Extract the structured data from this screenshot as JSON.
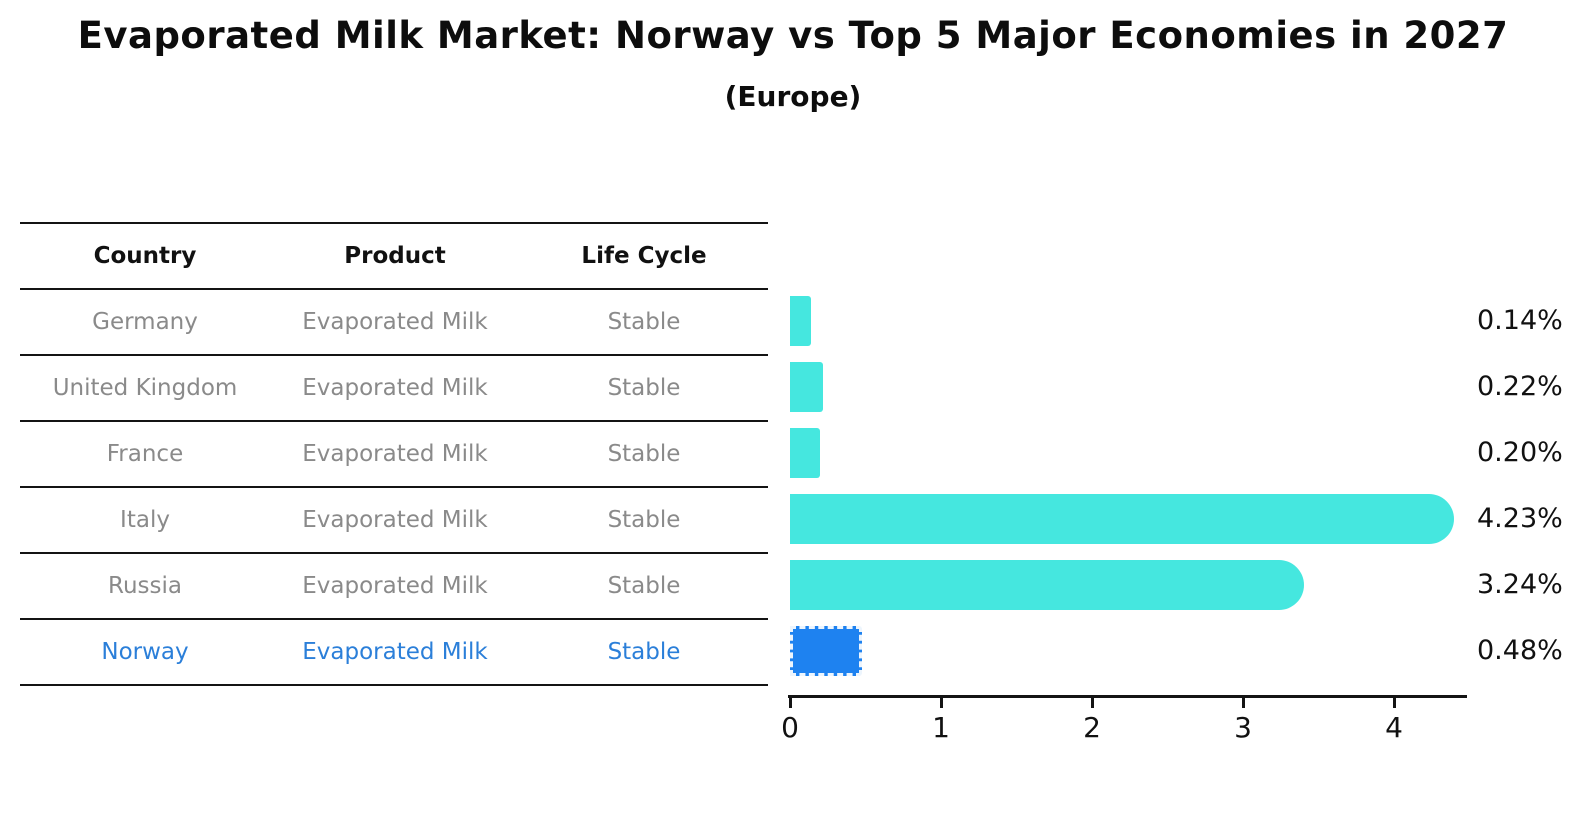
{
  "page": {
    "title": "Evaporated Milk Market: Norway vs Top 5 Major Economies in 2027",
    "subtitle": "(Europe)"
  },
  "table": {
    "headers": [
      "Country",
      "Product",
      "Life Cycle"
    ],
    "rows": [
      {
        "country": "Germany",
        "product": "Evaporated Milk",
        "life_cycle": "Stable",
        "highlight": false
      },
      {
        "country": "United Kingdom",
        "product": "Evaporated Milk",
        "life_cycle": "Stable",
        "highlight": false
      },
      {
        "country": "France",
        "product": "Evaporated Milk",
        "life_cycle": "Stable",
        "highlight": false
      },
      {
        "country": "Italy",
        "product": "Evaporated Milk",
        "life_cycle": "Stable",
        "highlight": false
      },
      {
        "country": "Russia",
        "product": "Evaporated Milk",
        "life_cycle": "Stable",
        "highlight": false
      },
      {
        "country": "Norway",
        "product": "Evaporated Milk",
        "life_cycle": "Stable",
        "highlight": true
      }
    ]
  },
  "chart_data": {
    "type": "bar",
    "orientation": "horizontal",
    "title": "Evaporated Milk Market: Norway vs Top 5 Major Economies in 2027",
    "subtitle": "(Europe)",
    "categories": [
      "Germany",
      "United Kingdom",
      "France",
      "Italy",
      "Russia",
      "Norway"
    ],
    "values": [
      0.14,
      0.22,
      0.2,
      4.23,
      3.24,
      0.48
    ],
    "value_labels": [
      "0.14%",
      "0.22%",
      "0.20%",
      "4.23%",
      "3.24%",
      "0.48%"
    ],
    "unit": "%",
    "xticks": [
      "0",
      "1",
      "2",
      "3",
      "4"
    ],
    "xlim": [
      0,
      4.5
    ],
    "grid": false,
    "legend": false,
    "bar_color": "#45e7df",
    "highlight_color": "#1e82f0",
    "highlight_index": 5,
    "highlight_category": "Norway"
  },
  "colors": {
    "text_muted": "#8a8a8a",
    "highlight_text": "#2b7fd9",
    "axis_line": "#141414",
    "title_text": "#0d0d0d"
  }
}
